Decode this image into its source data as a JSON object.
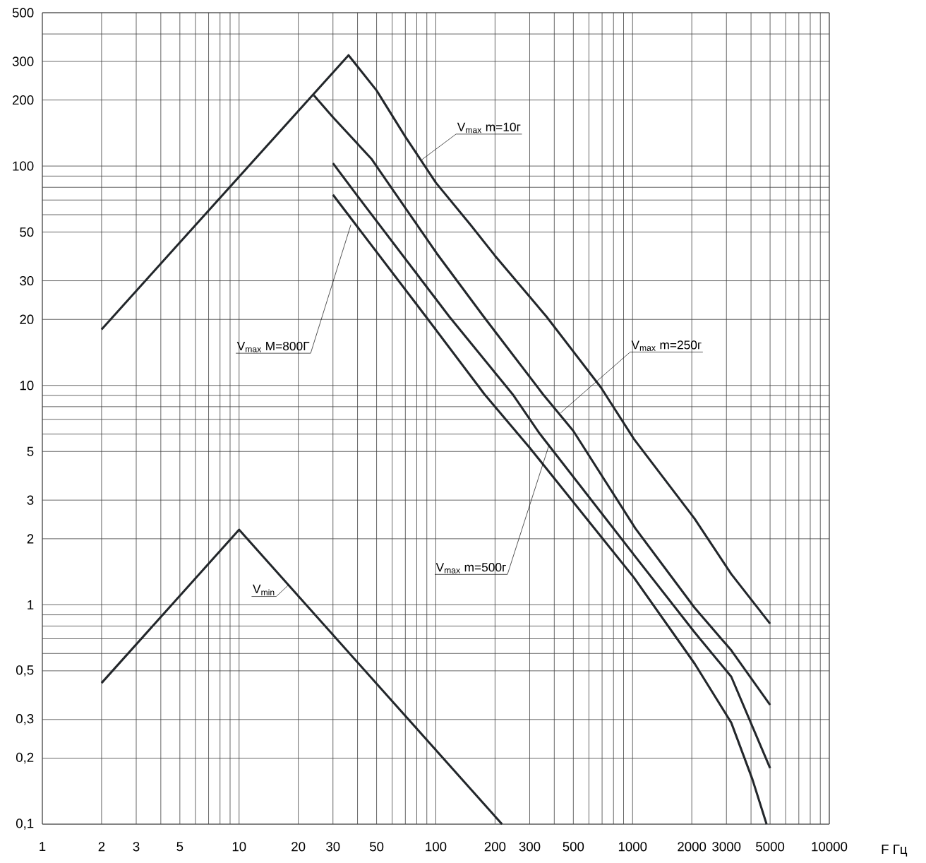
{
  "chart_data": {
    "type": "line",
    "xlabel": "F Гц",
    "log": "xy",
    "grid": true,
    "line_style": "solid",
    "xlim": [
      1,
      10000
    ],
    "ylim": [
      0.1,
      500
    ],
    "xticks": [
      1,
      2,
      3,
      {
        "value": 4,
        "label": null
      },
      5,
      {
        "value": 6,
        "label": null
      },
      {
        "value": 7,
        "label": null
      },
      {
        "value": 8,
        "label": null
      },
      {
        "value": 9,
        "label": null
      },
      10,
      20,
      30,
      {
        "value": 40,
        "label": null
      },
      50,
      {
        "value": 60,
        "label": null
      },
      {
        "value": 70,
        "label": null
      },
      {
        "value": 80,
        "label": null
      },
      {
        "value": 90,
        "label": null
      },
      100,
      200,
      300,
      {
        "value": 400,
        "label": null
      },
      500,
      {
        "value": 600,
        "label": null
      },
      {
        "value": 700,
        "label": null
      },
      {
        "value": 800,
        "label": null
      },
      {
        "value": 900,
        "label": null
      },
      1000,
      2000,
      3000,
      {
        "value": 4000,
        "label": null
      },
      5000,
      {
        "value": 6000,
        "label": null
      },
      {
        "value": 7000,
        "label": null
      },
      {
        "value": 8000,
        "label": null
      },
      {
        "value": 9000,
        "label": null
      },
      10000
    ],
    "yticks": [
      {
        "value": 0.1,
        "label": "0,1"
      },
      {
        "value": 0.2,
        "label": "0,2"
      },
      {
        "value": 0.3,
        "label": "0,3"
      },
      {
        "value": 0.5,
        "label": "0,5"
      },
      {
        "value": 0.6,
        "label": null
      },
      {
        "value": 0.7,
        "label": null
      },
      {
        "value": 0.8,
        "label": null
      },
      {
        "value": 0.9,
        "label": null
      },
      1,
      2,
      3,
      5,
      {
        "value": 6,
        "label": null
      },
      {
        "value": 7,
        "label": null
      },
      {
        "value": 8,
        "label": null
      },
      {
        "value": 9,
        "label": null
      },
      10,
      20,
      30,
      50,
      {
        "value": 60,
        "label": null
      },
      {
        "value": 70,
        "label": null
      },
      {
        "value": 80,
        "label": null
      },
      {
        "value": 90,
        "label": null
      },
      100,
      200,
      300,
      {
        "value": 400,
        "label": null
      },
      500
    ],
    "series": [
      {
        "color": "#23272b",
        "x": [
          2,
          36,
          50,
          70,
          100,
          150,
          200,
          365,
          690,
          1016,
          2066,
          3175,
          5000
        ],
        "values": [
          18,
          320,
          221,
          136,
          84,
          54,
          39,
          20.6,
          9.8,
          5.7,
          2.47,
          1.38,
          0.82
        ]
      },
      {
        "color": "#23272b",
        "x": [
          24,
          30,
          47,
          101,
          175,
          351,
          500,
          1033,
          2066,
          3175,
          5000
        ],
        "values": [
          210,
          167,
          108,
          40,
          20.6,
          9.1,
          6.2,
          2.23,
          0.97,
          0.62,
          0.35
        ]
      },
      {
        "color": "#23272b",
        "x": [
          30,
          40,
          117,
          246,
          334,
          1016,
          2066,
          3175,
          5000
        ],
        "values": [
          103,
          73,
          20.6,
          9.1,
          6.1,
          1.69,
          0.75,
          0.47,
          0.18
        ]
      },
      {
        "color": "#23272b",
        "x": [
          30,
          89,
          177,
          300,
          1016,
          2066,
          3175,
          4067,
          4800
        ],
        "values": [
          74,
          20.6,
          9.1,
          5.2,
          1.33,
          0.54,
          0.29,
          0.16,
          0.1
        ]
      },
      {
        "color": "#23272b",
        "x": [
          2,
          10,
          217
        ],
        "values": [
          0.44,
          2.2,
          0.1
        ]
      }
    ],
    "annotations": [
      {
        "text": "V$_{max}$ m=10г",
        "x": 85,
        "y": 107
      },
      {
        "text": "V$_{max}$ M=800Г",
        "x": 37,
        "y": 54
      },
      {
        "text": "V$_{max}$ m=250г",
        "x": 431,
        "y": 7.5
      },
      {
        "text": "V$_{max}$ m=500г",
        "x": 375,
        "y": 5.3
      },
      {
        "text": "V$_{min}$",
        "x": 18,
        "y": 1.24
      }
    ]
  }
}
